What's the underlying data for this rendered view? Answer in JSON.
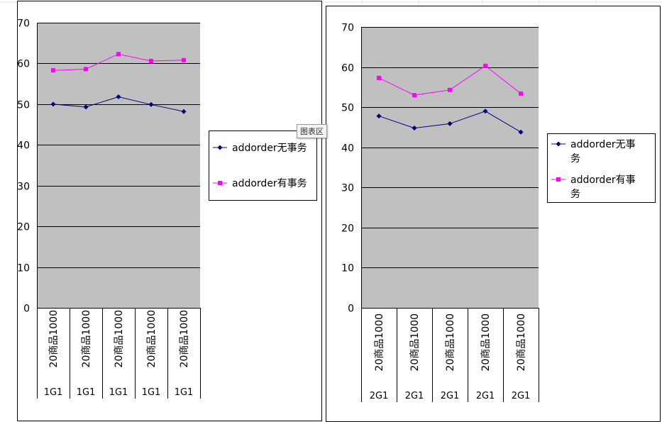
{
  "tooltip": "图表区",
  "chart_data": [
    {
      "type": "line",
      "title": "",
      "ylim": [
        0,
        70
      ],
      "yticks": [
        0,
        10,
        20,
        30,
        40,
        50,
        60,
        70
      ],
      "grid": true,
      "legend_position": "right",
      "categories": [
        {
          "name": "20商品1000",
          "group": "1G1"
        },
        {
          "name": "20商品1000",
          "group": "1G1"
        },
        {
          "name": "20商品1000",
          "group": "1G1"
        },
        {
          "name": "20商品1000",
          "group": "1G1"
        },
        {
          "name": "20商品1000",
          "group": "1G1"
        }
      ],
      "series": [
        {
          "name": "addorder无事务",
          "color": "#000080",
          "marker": "diamond",
          "values": [
            50.0,
            49.3,
            51.8,
            49.9,
            48.2
          ]
        },
        {
          "name": "addorder有事务",
          "color": "#ff00ff",
          "marker": "square",
          "values": [
            58.3,
            58.6,
            62.3,
            60.6,
            60.8
          ]
        }
      ]
    },
    {
      "type": "line",
      "title": "",
      "ylim": [
        0,
        70
      ],
      "yticks": [
        0,
        10,
        20,
        30,
        40,
        50,
        60,
        70
      ],
      "grid": true,
      "legend_position": "right",
      "categories": [
        {
          "name": "20商品1000",
          "group": "2G1"
        },
        {
          "name": "20商品1000",
          "group": "2G1"
        },
        {
          "name": "20商品1000",
          "group": "2G1"
        },
        {
          "name": "20商品1000",
          "group": "2G1"
        },
        {
          "name": "20商品1000",
          "group": "2G1"
        }
      ],
      "series": [
        {
          "name": "addorder无事务",
          "color": "#000080",
          "marker": "diamond",
          "values": [
            47.8,
            44.8,
            45.9,
            49.0,
            43.8
          ]
        },
        {
          "name": "addorder有事务",
          "color": "#ff00ff",
          "marker": "square",
          "values": [
            57.3,
            53.0,
            54.3,
            60.3,
            53.4
          ]
        }
      ]
    }
  ]
}
